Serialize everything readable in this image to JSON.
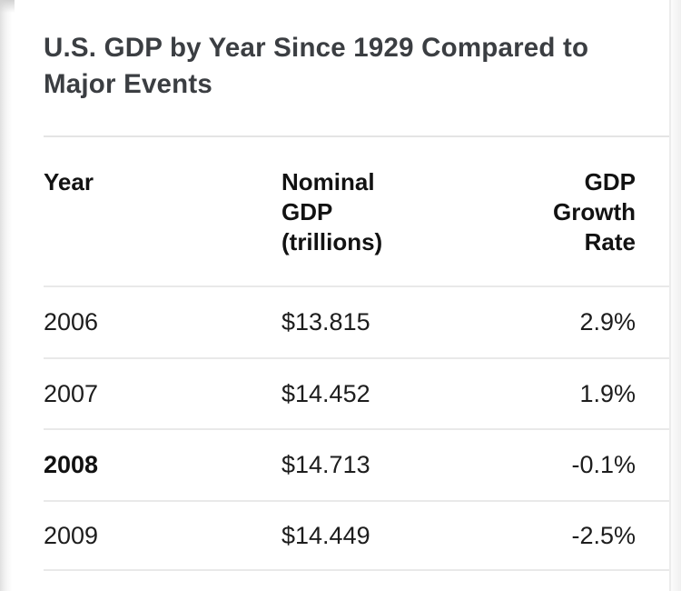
{
  "title": "U.S. GDP by Year Since 1929 Compared to Major Events",
  "colors": {
    "background": "#ffffff",
    "title_text": "#3b3e42",
    "header_text": "#121212",
    "body_text": "#1d1d1d",
    "divider": "#e4e4e4"
  },
  "table": {
    "headers": [
      "Year",
      "Nominal\nGDP\n(trillions)",
      "GDP\nGrowth\nRate"
    ],
    "rows": [
      {
        "year": "2006",
        "nominal_gdp": "$13.815",
        "growth_rate": "2.9%"
      },
      {
        "year": "2007",
        "nominal_gdp": "$14.452",
        "growth_rate": "1.9%"
      },
      {
        "year": "2008",
        "nominal_gdp": "$14.713",
        "growth_rate": "-0.1%",
        "year_emphasized": true
      },
      {
        "year": "2009",
        "nominal_gdp": "$14.449",
        "growth_rate": "-2.5%"
      }
    ]
  },
  "chart_data": {
    "type": "table",
    "title": "U.S. GDP by Year Since 1929 Compared to Major Events",
    "columns": [
      "Year",
      "Nominal GDP (trillions)",
      "GDP Growth Rate"
    ],
    "rows": [
      [
        "2006",
        "$13.815",
        "2.9%"
      ],
      [
        "2007",
        "$14.452",
        "1.9%"
      ],
      [
        "2008",
        "$14.713",
        "-0.1%"
      ],
      [
        "2009",
        "$14.449",
        "-2.5%"
      ]
    ],
    "years": [
      2006,
      2007,
      2008,
      2009
    ],
    "nominal_gdp_trillions": [
      13.815,
      14.452,
      14.713,
      14.449
    ],
    "gdp_growth_rate_percent": [
      2.9,
      1.9,
      -0.1,
      -2.5
    ],
    "emphasized_year": 2008,
    "legend_position": "none",
    "grid": "horizontal-row-dividers"
  }
}
